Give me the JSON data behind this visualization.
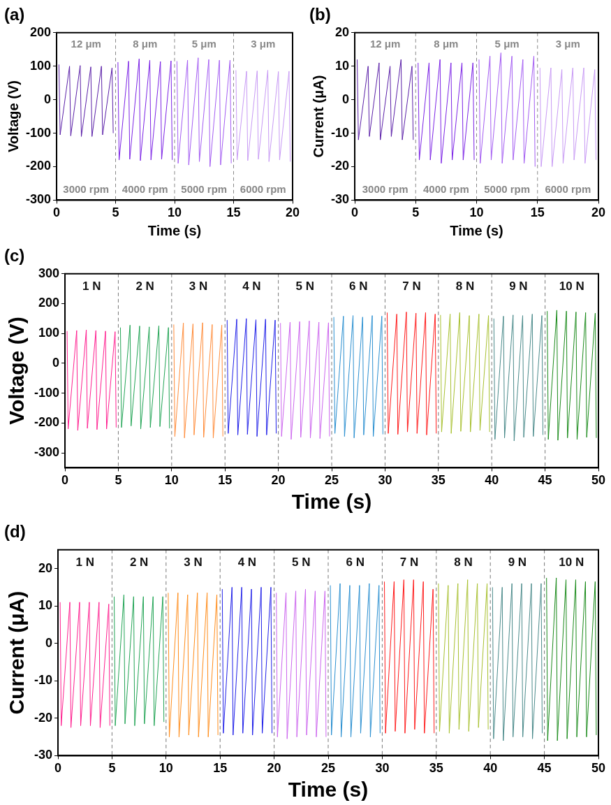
{
  "chart_data": [
    {
      "type": "line",
      "title": "(a)",
      "xlabel": "Time (s)",
      "ylabel": "Voltage (V)",
      "xlim": [
        0,
        20
      ],
      "xticks": [
        0,
        5,
        10,
        15,
        20
      ],
      "ylim": [
        -300,
        200
      ],
      "yticks": [
        -300,
        -200,
        -100,
        0,
        100,
        200
      ],
      "grid": false,
      "legend": false,
      "series": [
        {
          "color": "#5a1fa8",
          "x": [
            0.2,
            0.3,
            1.1,
            1.2,
            2,
            2.1,
            2.9,
            3,
            3.8,
            3.9,
            4.7,
            4.8
          ],
          "values": [
            105,
            -105,
            100,
            -108,
            102,
            -110,
            98,
            -110,
            100,
            -105,
            95,
            -100
          ]
        },
        {
          "color": "#7b22e6",
          "x": [
            5.2,
            5.3,
            6.1,
            6.2,
            7,
            7.1,
            7.9,
            8,
            8.8,
            8.9,
            9.7,
            9.8
          ],
          "values": [
            112,
            -180,
            115,
            -178,
            122,
            -182,
            118,
            -180,
            114,
            -178,
            116,
            -180
          ]
        },
        {
          "color": "#a35cf2",
          "x": [
            10.2,
            10.3,
            11.1,
            11.2,
            12,
            12.1,
            12.9,
            13,
            13.8,
            13.9,
            14.7,
            14.8
          ],
          "values": [
            115,
            -190,
            118,
            -195,
            125,
            -185,
            120,
            -200,
            118,
            -195,
            118,
            -190
          ]
        },
        {
          "color": "#c89af5",
          "x": [
            15.2,
            15.3,
            16.1,
            16.2,
            17,
            17.1,
            17.9,
            18,
            18.8,
            18.9,
            19.7,
            19.8
          ],
          "values": [
            88,
            -180,
            85,
            -182,
            86,
            -178,
            88,
            -185,
            84,
            -180,
            85,
            -185
          ]
        }
      ],
      "ref_lines": [
        {
          "axis": "x",
          "value": 5,
          "color": "#888888",
          "line_style": "dashed"
        },
        {
          "axis": "x",
          "value": 10,
          "color": "#888888",
          "line_style": "dashed"
        },
        {
          "axis": "x",
          "value": 15,
          "color": "#888888",
          "line_style": "dashed"
        }
      ],
      "annotations": [
        "12 μm",
        "8 μm",
        "5 μm",
        "3 μm",
        "3000 rpm",
        "4000 rpm",
        "5000 rpm",
        "6000 rpm"
      ]
    },
    {
      "type": "line",
      "title": "(b)",
      "xlabel": "Time (s)",
      "ylabel": "Current (μA)",
      "xlim": [
        0,
        20
      ],
      "xticks": [
        0,
        5,
        10,
        15,
        20
      ],
      "ylim": [
        -30,
        20
      ],
      "yticks": [
        -30,
        -20,
        -10,
        0,
        10,
        20
      ],
      "grid": false,
      "legend": false,
      "series": [
        {
          "color": "#5a1fa8",
          "x": [
            0.2,
            0.3,
            1.1,
            1.2,
            2,
            2.1,
            2.9,
            3,
            3.8,
            3.9,
            4.7,
            4.8
          ],
          "values": [
            12,
            -12,
            10,
            -11,
            11,
            -12,
            10,
            -11,
            12,
            -12,
            10,
            -12
          ]
        },
        {
          "color": "#7b22e6",
          "x": [
            5.2,
            5.3,
            6.1,
            6.2,
            7,
            7.1,
            7.9,
            8,
            8.8,
            8.9,
            9.7,
            9.8
          ],
          "values": [
            11,
            -18,
            11,
            -18,
            12,
            -19,
            11,
            -18,
            11,
            -18,
            11,
            -18
          ]
        },
        {
          "color": "#a35cf2",
          "x": [
            10.2,
            10.3,
            11.1,
            11.2,
            12,
            12.1,
            12.9,
            13,
            13.8,
            13.9,
            14.7,
            14.8
          ],
          "values": [
            12,
            -19,
            13,
            -18,
            14,
            -19,
            13,
            -18,
            12,
            -19,
            13,
            -20
          ]
        },
        {
          "color": "#c89af5",
          "x": [
            15.2,
            15.3,
            16.1,
            16.2,
            17,
            17.1,
            17.9,
            18,
            18.8,
            18.9,
            19.7,
            19.8
          ],
          "values": [
            9.5,
            -20,
            9.5,
            -20,
            9,
            -19,
            9.5,
            -18,
            9.5,
            -19,
            9,
            -18
          ]
        }
      ],
      "ref_lines": [
        {
          "axis": "x",
          "value": 5,
          "color": "#888888",
          "line_style": "dashed"
        },
        {
          "axis": "x",
          "value": 10,
          "color": "#888888",
          "line_style": "dashed"
        },
        {
          "axis": "x",
          "value": 15,
          "color": "#888888",
          "line_style": "dashed"
        }
      ],
      "annotations": [
        "12 μm",
        "8 μm",
        "5 μm",
        "3 μm",
        "3000 rpm",
        "4000 rpm",
        "5000 rpm",
        "6000 rpm"
      ]
    },
    {
      "type": "line",
      "title": "(c)",
      "xlabel": "Time (s)",
      "ylabel": "Voltage (V)",
      "xlim": [
        0,
        50
      ],
      "xticks": [
        0,
        5,
        10,
        15,
        20,
        25,
        30,
        35,
        40,
        45,
        50
      ],
      "ylim": [
        -350,
        300
      ],
      "yticks": [
        -300,
        -200,
        -100,
        0,
        100,
        200,
        300
      ],
      "grid": false,
      "legend": false,
      "series": [
        {
          "color": "#ff1f8f",
          "x": [
            0.2,
            0.3,
            1.1,
            1.2,
            2,
            2.1,
            2.9,
            3,
            3.8,
            3.9,
            4.7,
            4.8
          ],
          "values": [
            108,
            -220,
            110,
            -225,
            112,
            -218,
            110,
            -222,
            108,
            -220,
            106,
            -215
          ]
        },
        {
          "color": "#22a455",
          "x": [
            5.2,
            5.3,
            6.1,
            6.2,
            7,
            7.1,
            7.9,
            8,
            8.8,
            8.9,
            9.7,
            9.8
          ],
          "values": [
            120,
            -215,
            128,
            -210,
            125,
            -220,
            122,
            -215,
            126,
            -212,
            120,
            -218
          ]
        },
        {
          "color": "#ff8c3a",
          "x": [
            10.2,
            10.3,
            11.1,
            11.2,
            12,
            12.1,
            12.9,
            13,
            13.8,
            13.9,
            14.7,
            14.8
          ],
          "values": [
            130,
            -245,
            135,
            -250,
            132,
            -240,
            136,
            -248,
            130,
            -250,
            128,
            -245
          ]
        },
        {
          "color": "#1f1fe8",
          "x": [
            15.2,
            15.3,
            16.1,
            16.2,
            17,
            17.1,
            17.9,
            18,
            18.8,
            18.9,
            19.7,
            19.8
          ],
          "values": [
            145,
            -235,
            148,
            -240,
            150,
            -238,
            146,
            -245,
            148,
            -240,
            145,
            -235
          ]
        },
        {
          "color": "#cc66ee",
          "x": [
            20.2,
            20.3,
            21.1,
            21.2,
            22,
            22.1,
            22.9,
            23,
            23.8,
            23.9,
            24.7,
            24.8
          ],
          "values": [
            135,
            -245,
            138,
            -255,
            140,
            -248,
            142,
            -250,
            138,
            -252,
            136,
            -245
          ]
        },
        {
          "color": "#2a8fd0",
          "x": [
            25.2,
            25.3,
            26.1,
            26.2,
            27,
            27.1,
            27.9,
            28,
            28.8,
            28.9,
            29.7,
            29.8
          ],
          "values": [
            155,
            -235,
            158,
            -245,
            160,
            -250,
            155,
            -240,
            160,
            -245,
            158,
            -238
          ]
        },
        {
          "color": "#ff1a1a",
          "x": [
            30.2,
            30.3,
            31.1,
            31.2,
            32,
            32.1,
            32.9,
            33,
            33.8,
            33.9,
            34.7,
            34.8
          ],
          "values": [
            170,
            -235,
            165,
            -238,
            172,
            -230,
            168,
            -235,
            170,
            -240,
            165,
            -235
          ]
        },
        {
          "color": "#a8c030",
          "x": [
            35.2,
            35.3,
            36.1,
            36.2,
            37,
            37.1,
            37.9,
            38,
            38.8,
            38.9,
            39.7,
            39.8
          ],
          "values": [
            162,
            -230,
            165,
            -235,
            170,
            -228,
            160,
            -230,
            165,
            -225,
            160,
            -230
          ]
        },
        {
          "color": "#4a8a8a",
          "x": [
            40.2,
            40.3,
            41.1,
            41.2,
            42,
            42.1,
            42.9,
            43,
            43.8,
            43.9,
            44.7,
            44.8
          ],
          "values": [
            150,
            -255,
            158,
            -250,
            162,
            -260,
            160,
            -248,
            165,
            -245,
            160,
            -240
          ]
        },
        {
          "color": "#1a8a1a",
          "x": [
            45.2,
            45.3,
            46.1,
            46.2,
            47,
            47.1,
            47.9,
            48,
            48.8,
            48.9,
            49.7,
            49.8
          ],
          "values": [
            175,
            -255,
            178,
            -258,
            175,
            -250,
            172,
            -255,
            170,
            -248,
            168,
            -250
          ]
        }
      ],
      "ref_lines": [
        {
          "axis": "x",
          "value": 5,
          "color": "#777777",
          "line_style": "dashed"
        },
        {
          "axis": "x",
          "value": 10,
          "color": "#777777",
          "line_style": "dashed"
        },
        {
          "axis": "x",
          "value": 15,
          "color": "#777777",
          "line_style": "dashed"
        },
        {
          "axis": "x",
          "value": 20,
          "color": "#777777",
          "line_style": "dashed"
        },
        {
          "axis": "x",
          "value": 25,
          "color": "#777777",
          "line_style": "dashed"
        },
        {
          "axis": "x",
          "value": 30,
          "color": "#777777",
          "line_style": "dashed"
        },
        {
          "axis": "x",
          "value": 35,
          "color": "#777777",
          "line_style": "dashed"
        },
        {
          "axis": "x",
          "value": 40,
          "color": "#777777",
          "line_style": "dashed"
        },
        {
          "axis": "x",
          "value": 45,
          "color": "#777777",
          "line_style": "dashed"
        }
      ],
      "annotations": [
        "1 N",
        "2 N",
        "3 N",
        "4 N",
        "5 N",
        "6 N",
        "7 N",
        "8 N",
        "9 N",
        "10 N"
      ]
    },
    {
      "type": "line",
      "title": "(d)",
      "xlabel": "Time (s)",
      "ylabel": "Current (μA)",
      "xlim": [
        0,
        50
      ],
      "xticks": [
        0,
        5,
        10,
        15,
        20,
        25,
        30,
        35,
        40,
        45,
        50
      ],
      "ylim": [
        -30,
        25
      ],
      "yticks": [
        -30,
        -20,
        -10,
        0,
        10,
        20
      ],
      "grid": false,
      "legend": false,
      "series": [
        {
          "color": "#ff1f8f",
          "x": [
            0.2,
            0.3,
            1.1,
            1.2,
            2,
            2.1,
            2.9,
            3,
            3.8,
            3.9,
            4.7,
            4.8
          ],
          "values": [
            11,
            -22,
            11,
            -22.5,
            11,
            -22,
            11,
            -22,
            11,
            -22.5,
            10.5,
            -22
          ]
        },
        {
          "color": "#22a455",
          "x": [
            5.2,
            5.3,
            6.1,
            6.2,
            7,
            7.1,
            7.9,
            8,
            8.8,
            8.9,
            9.7,
            9.8
          ],
          "values": [
            12.5,
            -22,
            13,
            -21.5,
            12.5,
            -22,
            12.5,
            -21.5,
            12.5,
            -22,
            12.5,
            -21
          ]
        },
        {
          "color": "#ff8c1a",
          "x": [
            10.2,
            10.3,
            11.1,
            11.2,
            12,
            12.1,
            12.9,
            13,
            13.8,
            13.9,
            14.7,
            14.8
          ],
          "values": [
            13.5,
            -25,
            13.5,
            -25,
            13,
            -24.5,
            13.5,
            -25,
            13.5,
            -25,
            13,
            -24.5
          ]
        },
        {
          "color": "#1f1fe8",
          "x": [
            15.2,
            15.3,
            16.1,
            16.2,
            17,
            17.1,
            17.9,
            18,
            18.8,
            18.9,
            19.7,
            19.8
          ],
          "values": [
            14.5,
            -24,
            15,
            -24.5,
            15,
            -24,
            14.5,
            -24.5,
            15,
            -24,
            15,
            -24
          ]
        },
        {
          "color": "#cc66ee",
          "x": [
            20.2,
            20.3,
            21.1,
            21.2,
            22,
            22.1,
            22.9,
            23,
            23.8,
            23.9,
            24.7,
            24.8
          ],
          "values": [
            13.5,
            -25,
            13.5,
            -25.5,
            14,
            -25,
            14.5,
            -24.5,
            14,
            -25,
            14,
            -25
          ]
        },
        {
          "color": "#2a8fd0",
          "x": [
            25.2,
            25.3,
            26.1,
            26.2,
            27,
            27.1,
            27.9,
            28,
            28.8,
            28.9,
            29.7,
            29.8
          ],
          "values": [
            15.5,
            -24.5,
            16,
            -25,
            15.5,
            -25,
            15.5,
            -24,
            16,
            -25,
            15.5,
            -24
          ]
        },
        {
          "color": "#ff1a1a",
          "x": [
            30.2,
            30.3,
            31.1,
            31.2,
            32,
            32.1,
            32.9,
            33,
            33.8,
            33.9,
            34.7,
            34.8
          ],
          "values": [
            16.5,
            -24,
            16.5,
            -23.5,
            17,
            -24,
            17,
            -23,
            16.5,
            -24,
            14.5,
            -24
          ]
        },
        {
          "color": "#a8c030",
          "x": [
            35.2,
            35.3,
            36.1,
            36.2,
            37,
            37.1,
            37.9,
            38,
            38.8,
            38.9,
            39.7,
            39.8
          ],
          "values": [
            16,
            -23.5,
            15.5,
            -24,
            16,
            -23,
            17,
            -23.5,
            16,
            -22.5,
            16,
            -23
          ]
        },
        {
          "color": "#4a8a8a",
          "x": [
            40.2,
            40.3,
            41.1,
            41.2,
            42,
            42.1,
            42.9,
            43,
            43.8,
            43.9,
            44.7,
            44.8
          ],
          "values": [
            15,
            -25.5,
            15,
            -26,
            16,
            -25,
            16,
            -25,
            16,
            -25.5,
            16,
            -24
          ]
        },
        {
          "color": "#1a8a1a",
          "x": [
            45.2,
            45.3,
            46.1,
            46.2,
            47,
            47.1,
            47.9,
            48,
            48.8,
            48.9,
            49.7,
            49.8
          ],
          "values": [
            17.5,
            -26,
            17.5,
            -26,
            17,
            -25.5,
            17,
            -25,
            16.5,
            -25,
            16.5,
            -24.5
          ]
        }
      ],
      "ref_lines": [
        {
          "axis": "x",
          "value": 5,
          "color": "#777777",
          "line_style": "dashed"
        },
        {
          "axis": "x",
          "value": 10,
          "color": "#777777",
          "line_style": "dashed"
        },
        {
          "axis": "x",
          "value": 15,
          "color": "#777777",
          "line_style": "dashed"
        },
        {
          "axis": "x",
          "value": 20,
          "color": "#777777",
          "line_style": "dashed"
        },
        {
          "axis": "x",
          "value": 25,
          "color": "#777777",
          "line_style": "dashed"
        },
        {
          "axis": "x",
          "value": 30,
          "color": "#777777",
          "line_style": "dashed"
        },
        {
          "axis": "x",
          "value": 35,
          "color": "#777777",
          "line_style": "dashed"
        },
        {
          "axis": "x",
          "value": 40,
          "color": "#777777",
          "line_style": "dashed"
        },
        {
          "axis": "x",
          "value": 45,
          "color": "#777777",
          "line_style": "dashed"
        }
      ],
      "annotations": [
        "1 N",
        "2 N",
        "3 N",
        "4 N",
        "5 N",
        "6 N",
        "7 N",
        "8 N",
        "9 N",
        "10 N"
      ]
    }
  ]
}
